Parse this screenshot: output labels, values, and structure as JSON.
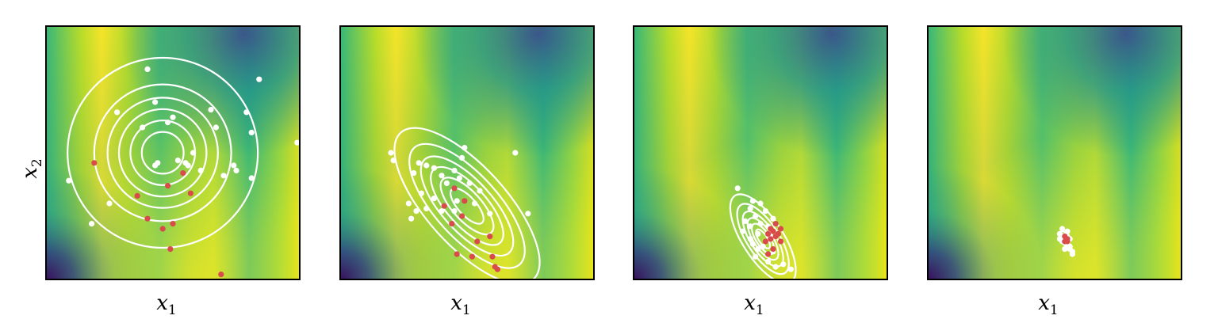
{
  "chart_data": [
    {
      "type": "scatter",
      "panel": 1,
      "xlabel": "x1",
      "ylabel": "x2",
      "background": "heatmap",
      "colormap": "viridis",
      "xlim": [
        0,
        1
      ],
      "ylim": [
        0,
        1
      ],
      "gaussian": {
        "mean": [
          0.46,
          0.5
        ],
        "sd": [
          0.15,
          0.15
        ],
        "rho": 0.0,
        "levels": [
          0.55,
          0.85,
          1.15,
          1.45,
          1.8,
          2.5
        ]
      },
      "white_points": [
        [
          0.4,
          0.83
        ],
        [
          0.84,
          0.79
        ],
        [
          0.28,
          0.66
        ],
        [
          0.43,
          0.7
        ],
        [
          0.5,
          0.64
        ],
        [
          0.65,
          0.67
        ],
        [
          0.79,
          0.66
        ],
        [
          0.38,
          0.6
        ],
        [
          0.48,
          0.62
        ],
        [
          0.67,
          0.6
        ],
        [
          0.81,
          0.58
        ],
        [
          0.99,
          0.54
        ],
        [
          0.58,
          0.5
        ],
        [
          0.44,
          0.46
        ],
        [
          0.43,
          0.45
        ],
        [
          0.52,
          0.47
        ],
        [
          0.55,
          0.46
        ],
        [
          0.56,
          0.45
        ],
        [
          0.74,
          0.45
        ],
        [
          0.75,
          0.43
        ],
        [
          0.61,
          0.43
        ],
        [
          0.7,
          0.41
        ],
        [
          0.81,
          0.4
        ],
        [
          0.09,
          0.39
        ],
        [
          0.25,
          0.3
        ],
        [
          0.18,
          0.22
        ]
      ],
      "red_points": [
        [
          0.19,
          0.46
        ],
        [
          0.54,
          0.42
        ],
        [
          0.48,
          0.37
        ],
        [
          0.36,
          0.33
        ],
        [
          0.57,
          0.34
        ],
        [
          0.4,
          0.24
        ],
        [
          0.5,
          0.22
        ],
        [
          0.46,
          0.2
        ],
        [
          0.49,
          0.12
        ],
        [
          0.69,
          0.02
        ]
      ]
    },
    {
      "type": "scatter",
      "panel": 2,
      "xlabel": "x1",
      "background": "heatmap",
      "colormap": "viridis",
      "xlim": [
        0,
        1
      ],
      "ylim": [
        0,
        1
      ],
      "gaussian": {
        "mean": [
          0.5,
          0.29
        ],
        "sd": [
          0.13,
          0.14
        ],
        "rho": -0.72,
        "levels": [
          0.5,
          0.8,
          1.1,
          1.4,
          1.75,
          2.2
        ]
      },
      "white_points": [
        [
          0.2,
          0.5
        ],
        [
          0.49,
          0.52
        ],
        [
          0.69,
          0.5
        ],
        [
          0.21,
          0.47
        ],
        [
          0.31,
          0.46
        ],
        [
          0.48,
          0.48
        ],
        [
          0.34,
          0.45
        ],
        [
          0.37,
          0.44
        ],
        [
          0.45,
          0.43
        ],
        [
          0.4,
          0.41
        ],
        [
          0.42,
          0.38
        ],
        [
          0.29,
          0.42
        ],
        [
          0.47,
          0.4
        ],
        [
          0.51,
          0.38
        ],
        [
          0.55,
          0.35
        ],
        [
          0.32,
          0.34
        ],
        [
          0.37,
          0.32
        ],
        [
          0.46,
          0.31
        ],
        [
          0.53,
          0.3
        ],
        [
          0.4,
          0.27
        ],
        [
          0.3,
          0.27
        ],
        [
          0.34,
          0.28
        ],
        [
          0.28,
          0.24
        ],
        [
          0.27,
          0.3
        ],
        [
          0.45,
          0.27
        ],
        [
          0.74,
          0.26
        ],
        [
          0.59,
          0.26
        ]
      ],
      "red_points": [
        [
          0.45,
          0.36
        ],
        [
          0.49,
          0.31
        ],
        [
          0.41,
          0.29
        ],
        [
          0.48,
          0.25
        ],
        [
          0.44,
          0.22
        ],
        [
          0.59,
          0.17
        ],
        [
          0.54,
          0.15
        ],
        [
          0.6,
          0.09
        ],
        [
          0.46,
          0.1
        ],
        [
          0.52,
          0.09
        ],
        [
          0.61,
          0.05
        ],
        [
          0.62,
          0.04
        ]
      ]
    },
    {
      "type": "scatter",
      "panel": 3,
      "xlabel": "x1",
      "background": "heatmap",
      "colormap": "viridis",
      "xlim": [
        0,
        1
      ],
      "ylim": [
        0,
        1
      ],
      "gaussian": {
        "mean": [
          0.51,
          0.16
        ],
        "sd": [
          0.055,
          0.075
        ],
        "rho": -0.7,
        "levels": [
          0.5,
          0.8,
          1.1,
          1.45,
          1.85,
          2.35
        ]
      },
      "white_points": [
        [
          0.41,
          0.36
        ],
        [
          0.47,
          0.31
        ],
        [
          0.5,
          0.3
        ],
        [
          0.46,
          0.28
        ],
        [
          0.52,
          0.27
        ],
        [
          0.48,
          0.25
        ],
        [
          0.55,
          0.24
        ],
        [
          0.44,
          0.23
        ],
        [
          0.5,
          0.22
        ],
        [
          0.46,
          0.21
        ],
        [
          0.53,
          0.21
        ],
        [
          0.43,
          0.19
        ],
        [
          0.49,
          0.18
        ],
        [
          0.46,
          0.16
        ],
        [
          0.54,
          0.17
        ],
        [
          0.52,
          0.15
        ],
        [
          0.47,
          0.14
        ],
        [
          0.51,
          0.13
        ],
        [
          0.49,
          0.12
        ],
        [
          0.55,
          0.11
        ],
        [
          0.48,
          0.09
        ],
        [
          0.53,
          0.07
        ],
        [
          0.59,
          0.06
        ],
        [
          0.56,
          0.05
        ],
        [
          0.62,
          0.04
        ]
      ],
      "red_points": [
        [
          0.56,
          0.22
        ],
        [
          0.54,
          0.2
        ],
        [
          0.58,
          0.2
        ],
        [
          0.55,
          0.19
        ],
        [
          0.53,
          0.18
        ],
        [
          0.57,
          0.18
        ],
        [
          0.56,
          0.17
        ],
        [
          0.54,
          0.16
        ],
        [
          0.52,
          0.15
        ],
        [
          0.58,
          0.15
        ],
        [
          0.55,
          0.12
        ],
        [
          0.53,
          0.1
        ]
      ]
    },
    {
      "type": "scatter",
      "panel": 4,
      "xlabel": "x1",
      "background": "heatmap",
      "colormap": "viridis",
      "xlim": [
        0,
        1
      ],
      "ylim": [
        0,
        1
      ],
      "gaussian": {
        "mean": [
          0.54,
          0.16
        ],
        "sd": [
          0.012,
          0.02
        ],
        "rho": -0.5,
        "levels": [
          0.9,
          1.5
        ]
      },
      "white_points": [
        [
          0.53,
          0.2
        ],
        [
          0.55,
          0.19
        ],
        [
          0.52,
          0.18
        ],
        [
          0.54,
          0.17
        ],
        [
          0.56,
          0.16
        ],
        [
          0.53,
          0.15
        ],
        [
          0.55,
          0.14
        ],
        [
          0.56,
          0.13
        ],
        [
          0.54,
          0.12
        ],
        [
          0.57,
          0.11
        ],
        [
          0.52,
          0.16
        ],
        [
          0.55,
          0.17
        ],
        [
          0.56,
          0.12
        ],
        [
          0.57,
          0.1
        ]
      ],
      "red_points": [
        [
          0.54,
          0.17
        ],
        [
          0.55,
          0.16
        ],
        [
          0.54,
          0.15
        ],
        [
          0.55,
          0.15
        ]
      ]
    }
  ],
  "colors": {
    "white_points": "#ffffff",
    "red_points": "#d94b4b",
    "contours": "#ffffff",
    "frame": "#000000"
  }
}
